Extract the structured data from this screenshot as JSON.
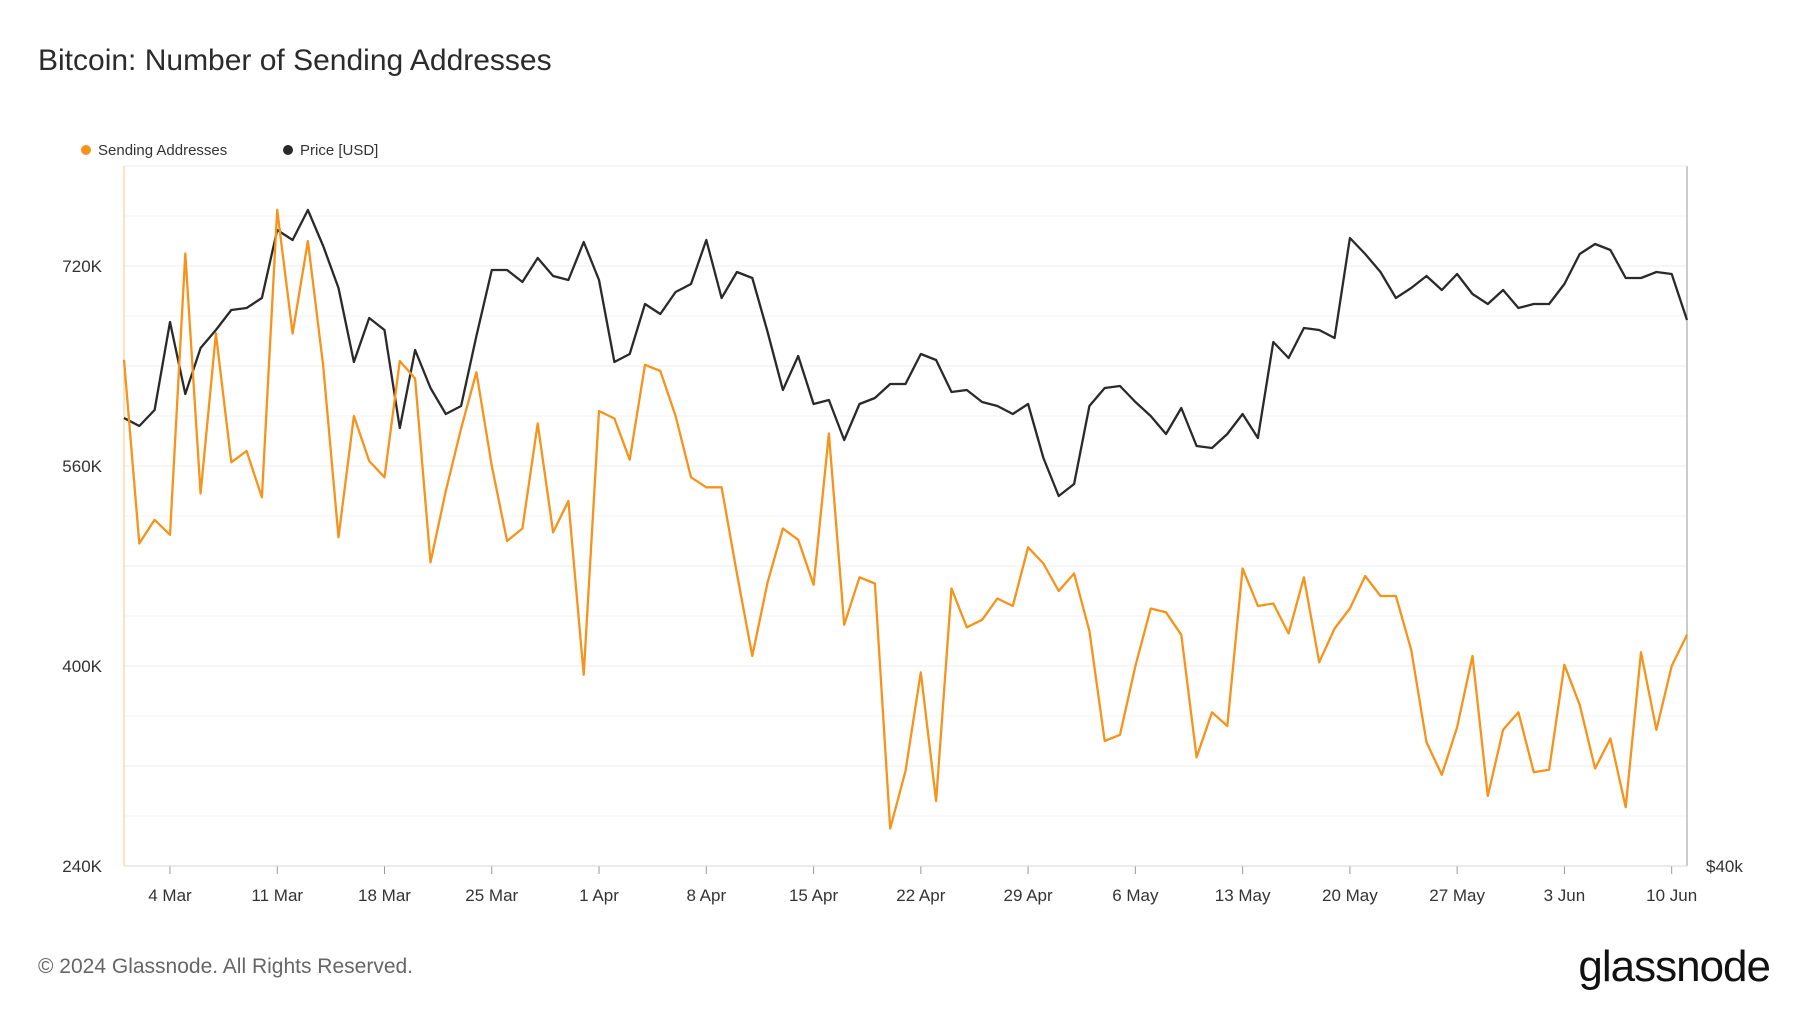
{
  "title": "Bitcoin: Number of Sending Addresses",
  "footer": "© 2024 Glassnode. All Rights Reserved.",
  "brand": "glassnode",
  "chart_data": {
    "type": "line",
    "title": "Bitcoin: Number of Sending Addresses",
    "legend_position": "top-left",
    "grid": true,
    "x": [
      "2024-03-01",
      "2024-03-02",
      "2024-03-03",
      "2024-03-04",
      "2024-03-05",
      "2024-03-06",
      "2024-03-07",
      "2024-03-08",
      "2024-03-09",
      "2024-03-10",
      "2024-03-11",
      "2024-03-12",
      "2024-03-13",
      "2024-03-14",
      "2024-03-15",
      "2024-03-16",
      "2024-03-17",
      "2024-03-18",
      "2024-03-19",
      "2024-03-20",
      "2024-03-21",
      "2024-03-22",
      "2024-03-23",
      "2024-03-24",
      "2024-03-25",
      "2024-03-26",
      "2024-03-27",
      "2024-03-28",
      "2024-03-29",
      "2024-03-30",
      "2024-03-31",
      "2024-04-01",
      "2024-04-02",
      "2024-04-03",
      "2024-04-04",
      "2024-04-05",
      "2024-04-06",
      "2024-04-07",
      "2024-04-08",
      "2024-04-09",
      "2024-04-10",
      "2024-04-11",
      "2024-04-12",
      "2024-04-13",
      "2024-04-14",
      "2024-04-15",
      "2024-04-16",
      "2024-04-17",
      "2024-04-18",
      "2024-04-19",
      "2024-04-20",
      "2024-04-21",
      "2024-04-22",
      "2024-04-23",
      "2024-04-24",
      "2024-04-25",
      "2024-04-26",
      "2024-04-27",
      "2024-04-28",
      "2024-04-29",
      "2024-04-30",
      "2024-05-01",
      "2024-05-02",
      "2024-05-03",
      "2024-05-04",
      "2024-05-05",
      "2024-05-06",
      "2024-05-07",
      "2024-05-08",
      "2024-05-09",
      "2024-05-10",
      "2024-05-11",
      "2024-05-12",
      "2024-05-13",
      "2024-05-14",
      "2024-05-15",
      "2024-05-16",
      "2024-05-17",
      "2024-05-18",
      "2024-05-19",
      "2024-05-20",
      "2024-05-21",
      "2024-05-22",
      "2024-05-23",
      "2024-05-24",
      "2024-05-25",
      "2024-05-26",
      "2024-05-27",
      "2024-05-28",
      "2024-05-29",
      "2024-05-30",
      "2024-05-31",
      "2024-06-01",
      "2024-06-02",
      "2024-06-03",
      "2024-06-04",
      "2024-06-05",
      "2024-06-06",
      "2024-06-07",
      "2024-06-08",
      "2024-06-09",
      "2024-06-10",
      "2024-06-11"
    ],
    "x_ticks": [
      "4 Mar",
      "11 Mar",
      "18 Mar",
      "25 Mar",
      "1 Apr",
      "8 Apr",
      "15 Apr",
      "22 Apr",
      "29 Apr",
      "6 May",
      "13 May",
      "20 May",
      "27 May",
      "3 Jun",
      "10 Jun"
    ],
    "x_tick_dates": [
      "2024-03-04",
      "2024-03-11",
      "2024-03-18",
      "2024-03-25",
      "2024-04-01",
      "2024-04-08",
      "2024-04-15",
      "2024-04-22",
      "2024-04-29",
      "2024-05-06",
      "2024-05-13",
      "2024-05-20",
      "2024-05-27",
      "2024-06-03",
      "2024-06-10"
    ],
    "y_left": {
      "ticks": [
        "240K",
        "400K",
        "560K",
        "720K"
      ],
      "tick_values": [
        240000,
        400000,
        560000,
        720000
      ],
      "range": [
        240000,
        800000
      ]
    },
    "y_right": {
      "ticks": [
        "$40k"
      ],
      "tick_values": [
        40000
      ],
      "range": [
        40000,
        75000
      ]
    },
    "series": [
      {
        "name": "Sending Addresses",
        "color": "#f7931a",
        "axis": "left",
        "values": [
          645000,
          498000,
          517000,
          505000,
          730000,
          538000,
          666000,
          563000,
          572000,
          535000,
          765000,
          666000,
          740000,
          640000,
          503000,
          600000,
          564000,
          551000,
          644000,
          630000,
          483000,
          540000,
          590000,
          635000,
          560000,
          500000,
          510000,
          594000,
          507000,
          532000,
          393000,
          604000,
          598000,
          565000,
          641000,
          636000,
          600000,
          551000,
          543000,
          543000,
          474000,
          408000,
          467000,
          510000,
          501000,
          465000,
          586000,
          433000,
          471000,
          466000,
          270000,
          316000,
          395000,
          292000,
          462000,
          431000,
          437000,
          454000,
          448000,
          495000,
          482000,
          460000,
          474000,
          428000,
          340000,
          345000,
          400000,
          446000,
          443000,
          425000,
          327000,
          363000,
          352000,
          478000,
          448000,
          450000,
          426000,
          471000,
          403000,
          430000,
          446000,
          472000,
          456000,
          456000,
          413000,
          339000,
          313000,
          351000,
          408000,
          296000,
          349000,
          363000,
          315000,
          317000,
          401000,
          369000,
          318000,
          342000,
          287000,
          411000,
          349000,
          400000,
          425000
        ]
      },
      {
        "name": "Price [USD]",
        "color": "#2a2a2a",
        "axis": "right",
        "values": [
          62400,
          62000,
          62800,
          67200,
          63600,
          65900,
          66800,
          67800,
          67900,
          68400,
          71800,
          71300,
          72800,
          71000,
          68900,
          65200,
          67400,
          66800,
          61900,
          65800,
          63900,
          62600,
          63000,
          66500,
          69800,
          69800,
          69200,
          70400,
          69500,
          69300,
          71200,
          69300,
          65200,
          65600,
          68100,
          67600,
          68700,
          69100,
          71300,
          68400,
          69700,
          69400,
          66700,
          63800,
          65500,
          63100,
          63300,
          61300,
          63100,
          63400,
          64100,
          64100,
          65600,
          65300,
          63700,
          63800,
          63200,
          63000,
          62600,
          63100,
          60400,
          58500,
          59100,
          63000,
          63900,
          64000,
          63200,
          62500,
          61600,
          62900,
          61000,
          60900,
          61600,
          62600,
          61400,
          66200,
          65400,
          66900,
          66800,
          66400,
          71400,
          70600,
          69700,
          68400,
          68900,
          69500,
          68800,
          69600,
          68600,
          68100,
          68800,
          67900,
          68100,
          68100,
          69100,
          70600,
          71100,
          70800,
          69400,
          69400,
          69700,
          69600,
          67300
        ]
      }
    ]
  }
}
